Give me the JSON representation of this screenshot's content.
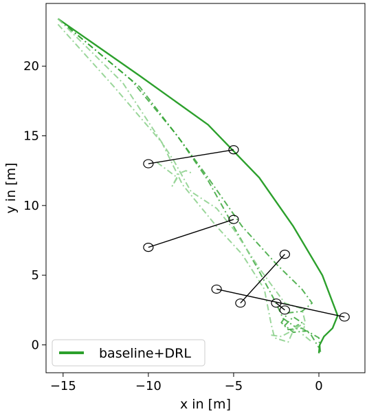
{
  "chart_data": {
    "type": "line",
    "xlabel": "x in [m]",
    "ylabel": "y in [m]",
    "xlim": [
      -16,
      2.7
    ],
    "ylim": [
      -2,
      24.5
    ],
    "x_ticks": [
      -15,
      -10,
      -5,
      0
    ],
    "x_tick_labels": [
      "−15",
      "−10",
      "−5",
      "0"
    ],
    "y_ticks": [
      0,
      5,
      10,
      15,
      20
    ],
    "y_tick_labels": [
      "0",
      "5",
      "10",
      "15",
      "20"
    ],
    "grid": false,
    "legend": {
      "position": "lower-left",
      "entries": [
        "baseline+DRL"
      ]
    },
    "colors": {
      "trajectory": "#2ca02c",
      "trajectory_faded": "#8fd18f",
      "segment": "#000000"
    },
    "series": [
      {
        "name": "baseline+DRL",
        "style": "solid",
        "points": [
          [
            0,
            -0.6
          ],
          [
            0.05,
            0.0
          ],
          [
            0.3,
            0.6
          ],
          [
            0.8,
            1.2
          ],
          [
            1.1,
            2.1
          ],
          [
            0.2,
            5.0
          ],
          [
            -1.5,
            8.5
          ],
          [
            -3.5,
            12.0
          ],
          [
            -6.5,
            15.8
          ],
          [
            -10.5,
            19.3
          ],
          [
            -15.3,
            23.4
          ]
        ]
      },
      {
        "name": "",
        "style": "dashdot",
        "points": [
          [
            -15.3,
            23.4
          ],
          [
            -11.0,
            19.0
          ],
          [
            -8.3,
            15.0
          ],
          [
            -6.5,
            11.8
          ],
          [
            -5.0,
            8.5
          ],
          [
            -3.6,
            5.5
          ],
          [
            -2.6,
            3.2
          ],
          [
            -2.1,
            1.9
          ],
          [
            -1.4,
            1.3
          ],
          [
            -1.0,
            1.6
          ],
          [
            -1.5,
            2.0
          ],
          [
            -2.0,
            1.4
          ],
          [
            -1.5,
            0.9
          ],
          [
            -0.7,
            1.0
          ],
          [
            0.0,
            0.5
          ],
          [
            0.1,
            -0.6
          ]
        ]
      },
      {
        "name": "",
        "style": "dashdot",
        "points": [
          [
            -15.3,
            23.4
          ],
          [
            -10.5,
            18.5
          ],
          [
            -8.0,
            14.5
          ],
          [
            -6.5,
            12.0
          ],
          [
            -4.5,
            8.5
          ],
          [
            -2.5,
            5.8
          ],
          [
            -1.0,
            4.0
          ],
          [
            -0.4,
            3.0
          ],
          [
            -1.0,
            2.4
          ],
          [
            -1.8,
            2.3
          ],
          [
            -2.2,
            1.6
          ],
          [
            -1.8,
            1.1
          ],
          [
            -1.0,
            1.2
          ],
          [
            -0.5,
            0.8
          ],
          [
            0.0,
            -0.2
          ]
        ]
      },
      {
        "name": "",
        "style": "dashdot-faded",
        "points": [
          [
            -15.3,
            23.0
          ],
          [
            -12.0,
            18.5
          ],
          [
            -9.2,
            14.5
          ],
          [
            -8.0,
            11.5
          ],
          [
            -6.0,
            8.5
          ],
          [
            -4.5,
            6.5
          ],
          [
            -3.2,
            4.0
          ],
          [
            -2.8,
            1.5
          ],
          [
            -2.6,
            0.5
          ],
          [
            -1.8,
            0.2
          ],
          [
            -1.4,
            1.3
          ],
          [
            -0.8,
            1.5
          ],
          [
            -1.0,
            0.8
          ],
          [
            -0.4,
            0.2
          ]
        ]
      },
      {
        "name": "",
        "style": "dashdot-faded",
        "points": [
          [
            -15.3,
            23.4
          ],
          [
            -11.5,
            18.8
          ],
          [
            -8.5,
            13.2
          ],
          [
            -7.5,
            11.0
          ],
          [
            -6.0,
            9.8
          ],
          [
            -5.0,
            8.3
          ],
          [
            -3.5,
            5.5
          ],
          [
            -2.0,
            3.0
          ],
          [
            -1.0,
            2.6
          ],
          [
            -0.8,
            1.6
          ],
          [
            -1.6,
            1.0
          ],
          [
            -2.2,
            0.6
          ],
          [
            -2.8,
            0.7
          ]
        ]
      },
      {
        "name": "",
        "style": "dashdot-faded",
        "points": [
          [
            -9.5,
            13.1
          ],
          [
            -8.3,
            12.0
          ],
          [
            -8.6,
            11.4
          ],
          [
            -8.2,
            12.3
          ],
          [
            -7.8,
            12.5
          ],
          [
            -7.4,
            12.3
          ]
        ]
      }
    ],
    "segments": [
      {
        "start": [
          -10,
          13
        ],
        "end": [
          -5,
          14
        ]
      },
      {
        "start": [
          -10,
          7
        ],
        "end": [
          -5,
          9
        ]
      },
      {
        "start": [
          -6,
          4
        ],
        "end": [
          1.5,
          2
        ]
      },
      {
        "start": [
          -4.6,
          3
        ],
        "end": [
          -2,
          6.5
        ]
      },
      {
        "start": [
          -2.5,
          3
        ],
        "end": [
          -2,
          2.5
        ]
      }
    ],
    "markers": [
      [
        -10,
        13
      ],
      [
        -5,
        14
      ],
      [
        -10,
        7
      ],
      [
        -5,
        9
      ],
      [
        -6,
        4
      ],
      [
        1.5,
        2
      ],
      [
        -4.6,
        3
      ],
      [
        -2,
        6.5
      ],
      [
        -2.5,
        3
      ],
      [
        -2,
        2.5
      ]
    ]
  }
}
